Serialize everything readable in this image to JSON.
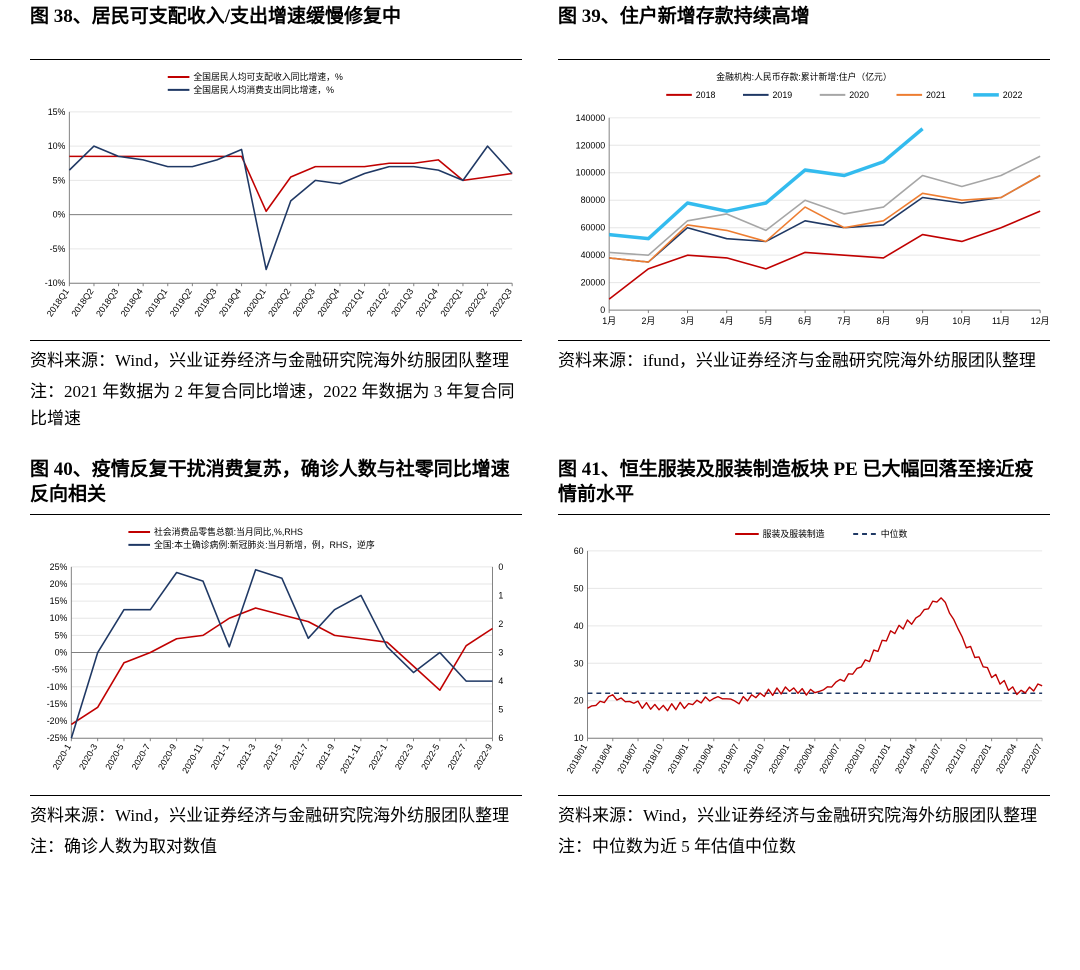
{
  "page_bg": "#ffffff",
  "text_color": "#000000",
  "border_color": "#000000",
  "fig38": {
    "title": "图 38、居民可支配收入/支出增速缓慢修复中",
    "source": "资料来源：Wind，兴业证券经济与金融研究院海外纺服团队整理",
    "note": "注：2021 年数据为 2 年复合同比增速，2022 年数据为 3 年复合同比增速",
    "chart": {
      "type": "line",
      "legend_items": [
        {
          "label": "全国居民人均可支配收入同比增速，%",
          "color": "#c00000"
        },
        {
          "label": "全国居民人均消费支出同比增速，%",
          "color": "#1f3864"
        }
      ],
      "x_labels": [
        "2018Q1",
        "2018Q2",
        "2018Q3",
        "2018Q4",
        "2019Q1",
        "2019Q2",
        "2019Q3",
        "2019Q4",
        "2020Q1",
        "2020Q2",
        "2020Q3",
        "2020Q4",
        "2021Q1",
        "2021Q2",
        "2021Q3",
        "2021Q4",
        "2022Q1",
        "2022Q2",
        "2022Q3"
      ],
      "ylim": [
        -10,
        15
      ],
      "ytick_step": 5,
      "y_suffix": "%",
      "grid_color": "#e6e6e6",
      "axis_color": "#808080",
      "label_fontsize": 9,
      "line_width": 1.6,
      "series": {
        "income": [
          8.5,
          8.5,
          8.5,
          8.5,
          8.5,
          8.5,
          8.5,
          8.5,
          0.5,
          5.5,
          7.0,
          7.0,
          7.0,
          7.5,
          7.5,
          8.0,
          5.0,
          5.5,
          6.0
        ],
        "spending": [
          6.5,
          10.0,
          8.5,
          8.0,
          7.0,
          7.0,
          8.0,
          9.5,
          -8.0,
          2.0,
          5.0,
          4.5,
          6.0,
          7.0,
          7.0,
          6.5,
          5.0,
          10.0,
          6.0
        ]
      }
    }
  },
  "fig39": {
    "title": "图 39、住户新增存款持续高增",
    "source": "资料来源：ifund，兴业证券经济与金融研究院海外纺服团队整理",
    "chart": {
      "type": "line",
      "legend_title": "金融机构:人民币存款:累计新增:住户（亿元）",
      "legend_items": [
        {
          "label": "2018",
          "color": "#c00000"
        },
        {
          "label": "2019",
          "color": "#1f3864"
        },
        {
          "label": "2020",
          "color": "#a6a6a6"
        },
        {
          "label": "2021",
          "color": "#ed7d31"
        },
        {
          "label": "2022",
          "color": "#33bbee",
          "width": 3.5
        }
      ],
      "x_labels": [
        "1月",
        "2月",
        "3月",
        "4月",
        "5月",
        "6月",
        "7月",
        "8月",
        "9月",
        "10月",
        "11月",
        "12月"
      ],
      "ylim": [
        0,
        140000
      ],
      "ytick_step": 20000,
      "grid_color": "#e6e6e6",
      "axis_color": "#808080",
      "label_fontsize": 9,
      "line_width": 1.6,
      "series": {
        "2018": [
          8000,
          30000,
          40000,
          38000,
          30000,
          42000,
          40000,
          38000,
          55000,
          50000,
          60000,
          72000
        ],
        "2019": [
          38000,
          35000,
          60000,
          52000,
          50000,
          65000,
          60000,
          62000,
          82000,
          78000,
          82000,
          98000
        ],
        "2020": [
          42000,
          40000,
          65000,
          70000,
          58000,
          80000,
          70000,
          75000,
          98000,
          90000,
          98000,
          112000
        ],
        "2021": [
          38000,
          35000,
          62000,
          58000,
          50000,
          75000,
          60000,
          65000,
          85000,
          80000,
          82000,
          98000
        ],
        "2022": [
          55000,
          52000,
          78000,
          72000,
          78000,
          102000,
          98000,
          108000,
          132000,
          null,
          null,
          null
        ]
      }
    }
  },
  "fig40": {
    "title": "图 40、疫情反复干扰消费复苏，确诊人数与社零同比增速反向相关",
    "source": "资料来源：Wind，兴业证券经济与金融研究院海外纺服团队整理",
    "note": "注：确诊人数为取对数值",
    "chart": {
      "type": "line-dualaxis",
      "legend_items": [
        {
          "label": "社会消费品零售总额:当月同比,%,RHS",
          "color": "#c00000"
        },
        {
          "label": "全国:本土确诊病例:新冠肺炎:当月新增，例，RHS，逆序",
          "color": "#1f3864"
        }
      ],
      "x_labels": [
        "2020-1",
        "2020-3",
        "2020-5",
        "2020-7",
        "2020-9",
        "2020-11",
        "2021-1",
        "2021-3",
        "2021-5",
        "2021-7",
        "2021-9",
        "2021-11",
        "2022-1",
        "2022-3",
        "2022-5",
        "2022-7",
        "2022-9"
      ],
      "ylim_left": [
        -25,
        25
      ],
      "ytick_left_step": 5,
      "y_suffix_left": "%",
      "ylim_right": [
        0,
        6
      ],
      "ytick_right_step": 1,
      "right_inverted": true,
      "grid_color": "#e6e6e6",
      "axis_color": "#808080",
      "label_fontsize": 9,
      "line_width": 1.6,
      "series_left": {
        "retail": [
          -21,
          -16,
          -3,
          0,
          4,
          5,
          10,
          13,
          11,
          9,
          5,
          4,
          3,
          -4,
          -11,
          2,
          7
        ]
      },
      "series_right": {
        "cases": [
          6,
          3,
          1.5,
          1.5,
          0.2,
          0.5,
          2.8,
          0.1,
          0.4,
          2.5,
          1.5,
          1.0,
          2.8,
          3.7,
          3.0,
          4.0,
          4.0
        ]
      }
    }
  },
  "fig41": {
    "title": "图 41、恒生服装及服装制造板块 PE 已大幅回落至接近疫情前水平",
    "source": "资料来源：Wind，兴业证券经济与金融研究院海外纺服团队整理",
    "note": "注：中位数为近 5 年估值中位数",
    "chart": {
      "type": "line",
      "legend_items": [
        {
          "label": "服装及服装制造",
          "color": "#c00000"
        },
        {
          "label": "中位数",
          "color": "#1f3864",
          "dash": "5,4"
        }
      ],
      "x_labels": [
        "2018/01",
        "2018/04",
        "2018/07",
        "2018/10",
        "2019/01",
        "2019/04",
        "2019/07",
        "2019/10",
        "2020/01",
        "2020/04",
        "2020/07",
        "2020/10",
        "2021/01",
        "2021/04",
        "2021/07",
        "2021/10",
        "2022/01",
        "2022/04",
        "2022/07"
      ],
      "ylim": [
        10,
        60
      ],
      "ytick_step": 10,
      "grid_color": "#e6e6e6",
      "axis_color": "#808080",
      "label_fontsize": 9,
      "line_width": 1.4,
      "median_value": 22,
      "series": {
        "pe": [
          18,
          21,
          19,
          18,
          19,
          21,
          20,
          22,
          23,
          22,
          25,
          30,
          38,
          42,
          48,
          35,
          27,
          22,
          24
        ]
      }
    }
  }
}
